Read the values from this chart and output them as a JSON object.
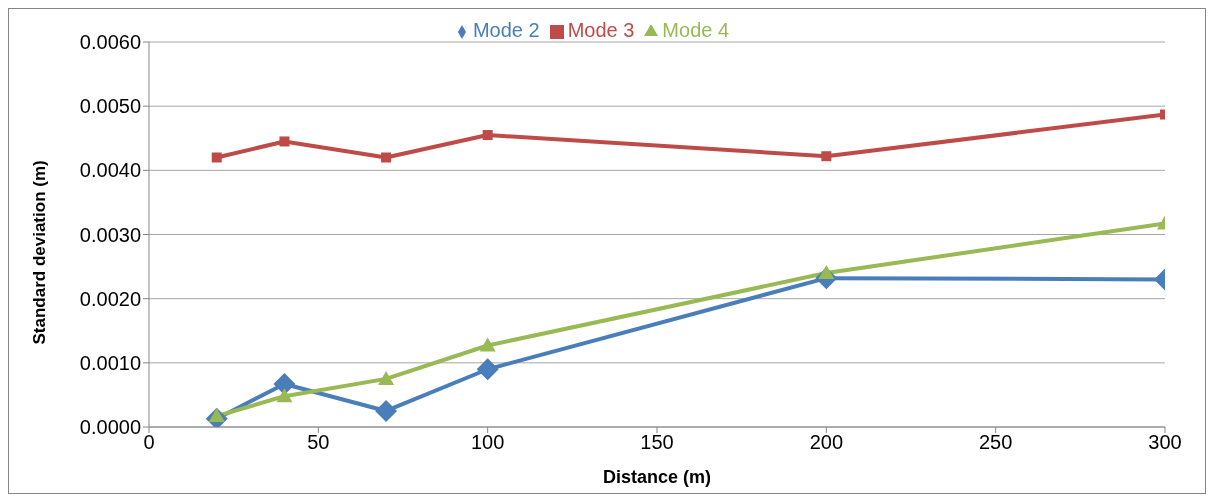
{
  "chart_data": {
    "type": "line",
    "xlabel": "Distance (m)",
    "ylabel": "Standard deviation (m)",
    "x": [
      20,
      40,
      70,
      100,
      200,
      300
    ],
    "series": [
      {
        "name": "Mode 2",
        "color": "#4a7ebb",
        "marker": "diamond",
        "values": [
          0.00013,
          0.00067,
          0.00025,
          0.0009,
          0.00232,
          0.0023
        ]
      },
      {
        "name": "Mode 3",
        "color": "#be4b48",
        "marker": "square",
        "values": [
          0.0042,
          0.00445,
          0.0042,
          0.00455,
          0.00422,
          0.00487
        ]
      },
      {
        "name": "Mode 4",
        "color": "#98b954",
        "marker": "triangle",
        "values": [
          0.00017,
          0.00048,
          0.00075,
          0.00127,
          0.0024,
          0.00317
        ]
      }
    ],
    "xlim": [
      0,
      300
    ],
    "xticks": [
      0,
      50,
      100,
      150,
      200,
      250,
      300
    ],
    "ylim": [
      0,
      0.006
    ],
    "yticks": [
      {
        "value": 0,
        "label": "0.0000"
      },
      {
        "value": 0.001,
        "label": "0.0010"
      },
      {
        "value": 0.002,
        "label": "0.0020"
      },
      {
        "value": 0.003,
        "label": "0.0030"
      },
      {
        "value": 0.004,
        "label": "0.0040"
      },
      {
        "value": 0.005,
        "label": "0.0050"
      },
      {
        "value": 0.006,
        "label": "0.0060"
      }
    ],
    "grid": "y",
    "legend": "top",
    "line_style": "solid"
  }
}
